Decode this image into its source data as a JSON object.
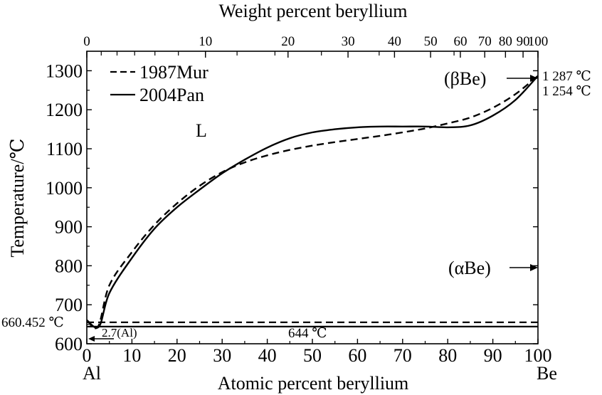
{
  "chart_data": {
    "type": "line",
    "title": "",
    "xlabel": "Atomic percent beryllium",
    "x2label": "Weight percent beryllium",
    "ylabel": "Temperature/℃",
    "xlim": [
      0,
      100
    ],
    "ylim": [
      600,
      1350
    ],
    "x_ticks": [
      0,
      10,
      20,
      30,
      40,
      50,
      60,
      70,
      80,
      90,
      100
    ],
    "x_tick_labels": [
      "0",
      "10",
      "20",
      "30",
      "40",
      "50",
      "60",
      "70",
      "80",
      "90",
      "100"
    ],
    "y_ticks": [
      600,
      700,
      800,
      900,
      1000,
      1100,
      1200,
      1300
    ],
    "y_tick_labels": [
      "600",
      "700",
      "800",
      "900",
      "1000",
      "1100",
      "1200",
      "1300"
    ],
    "top_ticks_at": [
      0,
      3.2,
      6.7,
      10.6,
      15.1,
      20.3,
      26.3,
      33.3,
      41.7,
      52.0,
      64.8,
      81.4,
      100
    ],
    "top_tick_labels": [
      {
        "at": 0,
        "label": "0"
      },
      {
        "at": 26.3,
        "label": "10"
      },
      {
        "at": 44.6,
        "label": "20"
      },
      {
        "at": 57.9,
        "label": "30"
      },
      {
        "at": 68.2,
        "label": "40"
      },
      {
        "at": 76.2,
        "label": "50"
      },
      {
        "at": 82.8,
        "label": "60"
      },
      {
        "at": 88.2,
        "label": "70"
      },
      {
        "at": 92.8,
        "label": "80"
      },
      {
        "at": 96.7,
        "label": "90"
      },
      {
        "at": 100,
        "label": "100"
      }
    ],
    "legend": "top-left",
    "grid": false,
    "series": [
      {
        "name": "1987Mur",
        "style": "dashed",
        "x": [
          0,
          2.5,
          5,
          10,
          15,
          20,
          25,
          30,
          35,
          40,
          45,
          50,
          55,
          60,
          65,
          70,
          75,
          80,
          85,
          90,
          95,
          100
        ],
        "y": [
          660.452,
          644,
          750,
          835,
          905,
          960,
          1005,
          1040,
          1065,
          1083,
          1097,
          1108,
          1117,
          1125,
          1133,
          1142,
          1152,
          1165,
          1180,
          1205,
          1240,
          1287
        ]
      },
      {
        "name": "2004Pan",
        "style": "solid",
        "x": [
          0,
          2.7,
          5,
          10,
          15,
          20,
          25,
          30,
          35,
          40,
          45,
          50,
          55,
          60,
          65,
          70,
          75,
          80,
          85,
          90,
          95,
          100
        ],
        "y": [
          660.452,
          644,
          730,
          820,
          895,
          950,
          995,
          1037,
          1072,
          1103,
          1127,
          1142,
          1150,
          1155,
          1157,
          1157,
          1157,
          1155,
          1160,
          1185,
          1225,
          1287
        ]
      }
    ],
    "horizontal_lines": [
      {
        "y": 655,
        "style": "dashed",
        "series": "1987Mur"
      },
      {
        "y": 644,
        "style": "solid",
        "series": "2004Pan"
      }
    ],
    "annotations": {
      "region_L": "L",
      "beta_be": "(βBe)",
      "alpha_be": "(αBe)",
      "t_1287": "1 287 ℃",
      "t_1254": "1 254 ℃",
      "t_660": "660.452 ℃",
      "eutectic_comp": "2.7(Al)",
      "t_644": "644 ℃",
      "left_element": "Al",
      "right_element": "Be"
    }
  }
}
